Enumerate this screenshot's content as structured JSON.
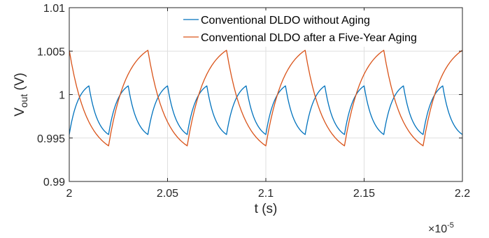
{
  "chart_data": {
    "type": "line",
    "title": "",
    "xlabel": "t (s)",
    "ylabel_main": "V",
    "ylabel_sub": "out",
    "ylabel_unit": " (V)",
    "x_exponent_base": "×10",
    "x_exponent_power": "-5",
    "xlim": [
      2.0,
      2.2
    ],
    "ylim": [
      0.99,
      1.01
    ],
    "x_ticks": [
      2.0,
      2.05,
      2.1,
      2.15,
      2.2
    ],
    "x_tick_labels": [
      "2",
      "2.05",
      "2.1",
      "2.15",
      "2.2"
    ],
    "y_ticks": [
      0.99,
      0.995,
      1.0,
      1.005,
      1.01
    ],
    "y_tick_labels": [
      "0.99",
      "0.995",
      "1",
      "1.005",
      "1.01"
    ],
    "grid": true,
    "legend_position": "top-right",
    "series": [
      {
        "name": "Conventional DLDO without Aging",
        "color": "#0072BD",
        "period": 0.02,
        "phase_start": 2.0,
        "v_low": 0.9954,
        "v_high": 1.001,
        "rise_fraction": 0.5
      },
      {
        "name": "Conventional DLDO after a Five-Year Aging",
        "color": "#D95319",
        "period": 0.04,
        "phase_start": 2.0,
        "v_low": 0.9941,
        "v_high": 1.0051,
        "rise_fraction": 0.5
      }
    ]
  }
}
